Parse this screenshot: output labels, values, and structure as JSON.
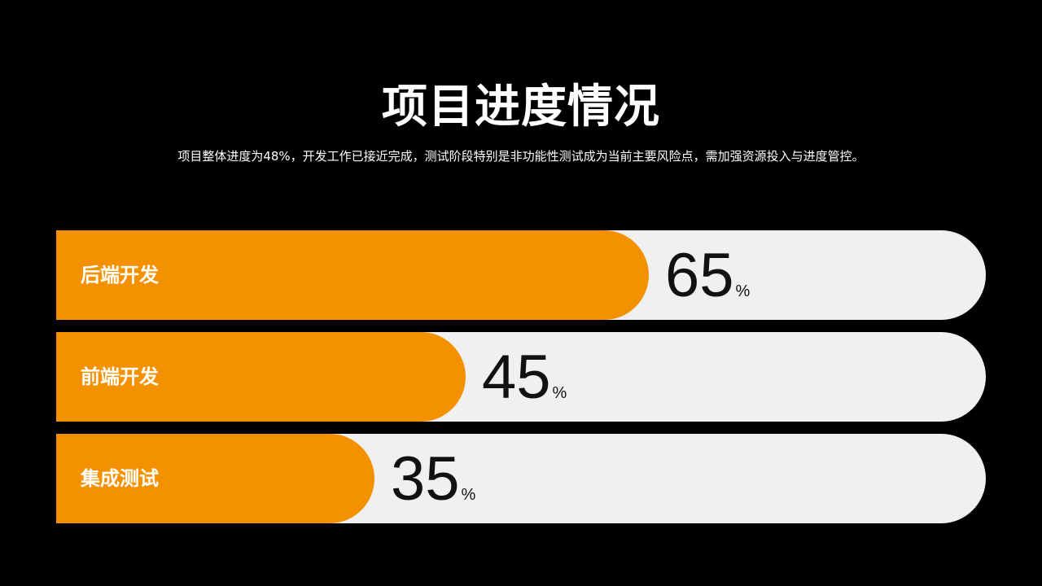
{
  "title": "项目进度情况",
  "subtitle": "项目整体进度为48%，开发工作已接近完成，测试阶段特别是非功能性测试成为当前主要风险点，需加强资源投入与进度管控。",
  "colors": {
    "background": "#000000",
    "fill": "#f39100",
    "track": "#f0f0f0",
    "value_text": "#111111"
  },
  "chart_data": {
    "type": "bar",
    "orientation": "horizontal",
    "title": "项目进度情况",
    "categories": [
      "后端开发",
      "前端开发",
      "集成测试"
    ],
    "values": [
      65,
      45,
      35
    ],
    "value_unit": "%",
    "xlim": [
      0,
      100
    ],
    "grid": false,
    "legend": "none"
  }
}
